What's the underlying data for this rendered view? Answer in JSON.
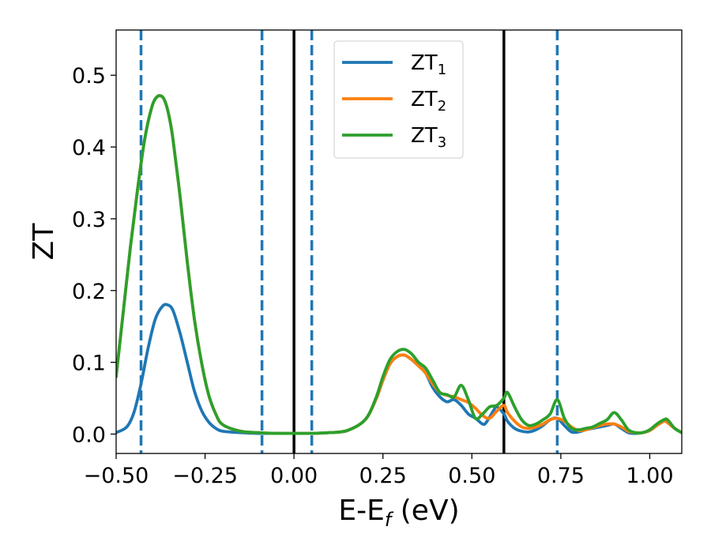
{
  "chart_data": {
    "type": "line",
    "xlabel": {
      "main": "E-E",
      "sub": "f",
      "tail": " (eV)"
    },
    "ylabel": "ZT",
    "xlim": [
      -0.5,
      1.09
    ],
    "ylim": [
      -0.027,
      0.563
    ],
    "xticks": [
      -0.5,
      -0.25,
      0.0,
      0.25,
      0.5,
      0.75,
      1.0
    ],
    "xtick_labels": [
      "−0.50",
      "−0.25",
      "0.00",
      "0.25",
      "0.50",
      "0.75",
      "1.00"
    ],
    "yticks": [
      0.0,
      0.1,
      0.2,
      0.3,
      0.4,
      0.5
    ],
    "ytick_labels": [
      "0.0",
      "0.1",
      "0.2",
      "0.3",
      "0.4",
      "0.5"
    ],
    "grid": false,
    "legend_position": "top-center",
    "series": [
      {
        "name": "ZT1",
        "legend_main": "ZT",
        "legend_sub": "1",
        "color": "#1f77b4",
        "x": [
          -0.5,
          -0.47,
          -0.45,
          -0.43,
          -0.41,
          -0.39,
          -0.37,
          -0.355,
          -0.34,
          -0.32,
          -0.3,
          -0.28,
          -0.26,
          -0.24,
          -0.22,
          -0.2,
          -0.15,
          -0.1,
          -0.05,
          0.0,
          0.05,
          0.1,
          0.15,
          0.2,
          0.23,
          0.25,
          0.27,
          0.29,
          0.31,
          0.33,
          0.35,
          0.37,
          0.39,
          0.41,
          0.43,
          0.45,
          0.47,
          0.49,
          0.51,
          0.53,
          0.54,
          0.56,
          0.57,
          0.59,
          0.6,
          0.62,
          0.64,
          0.66,
          0.68,
          0.7,
          0.72,
          0.74,
          0.76,
          0.78,
          0.8,
          0.82,
          0.84,
          0.86,
          0.88,
          0.9,
          0.92,
          0.94,
          0.96,
          0.98,
          1.0,
          1.02,
          1.04,
          1.05,
          1.07,
          1.09
        ],
        "y": [
          0.002,
          0.01,
          0.03,
          0.07,
          0.12,
          0.16,
          0.178,
          0.18,
          0.172,
          0.14,
          0.1,
          0.06,
          0.033,
          0.017,
          0.008,
          0.004,
          0.002,
          0.001,
          0.001,
          0.001,
          0.001,
          0.002,
          0.005,
          0.02,
          0.048,
          0.075,
          0.098,
          0.108,
          0.11,
          0.104,
          0.095,
          0.085,
          0.065,
          0.052,
          0.045,
          0.048,
          0.04,
          0.028,
          0.022,
          0.014,
          0.016,
          0.032,
          0.038,
          0.028,
          0.018,
          0.008,
          0.004,
          0.003,
          0.006,
          0.012,
          0.02,
          0.022,
          0.012,
          0.003,
          0.003,
          0.006,
          0.008,
          0.01,
          0.012,
          0.014,
          0.008,
          0.002,
          0.001,
          0.002,
          0.005,
          0.012,
          0.018,
          0.016,
          0.008,
          0.002
        ]
      },
      {
        "name": "ZT2",
        "legend_main": "ZT",
        "legend_sub": "2",
        "color": "#ff7f0e",
        "x": [
          -0.5,
          -0.48,
          -0.46,
          -0.44,
          -0.42,
          -0.4,
          -0.385,
          -0.37,
          -0.36,
          -0.35,
          -0.34,
          -0.32,
          -0.3,
          -0.28,
          -0.26,
          -0.24,
          -0.22,
          -0.2,
          -0.15,
          -0.1,
          -0.05,
          0.0,
          0.05,
          0.1,
          0.15,
          0.2,
          0.23,
          0.25,
          0.27,
          0.29,
          0.31,
          0.33,
          0.35,
          0.37,
          0.39,
          0.41,
          0.43,
          0.45,
          0.47,
          0.49,
          0.51,
          0.53,
          0.55,
          0.57,
          0.59,
          0.6,
          0.62,
          0.64,
          0.66,
          0.68,
          0.7,
          0.72,
          0.74,
          0.76,
          0.78,
          0.8,
          0.82,
          0.84,
          0.86,
          0.88,
          0.9,
          0.92,
          0.94,
          0.96,
          0.98,
          1.0,
          1.02,
          1.04,
          1.05,
          1.07,
          1.09
        ],
        "y": [
          0.08,
          0.17,
          0.26,
          0.34,
          0.41,
          0.455,
          0.47,
          0.47,
          0.46,
          0.44,
          0.41,
          0.33,
          0.24,
          0.16,
          0.1,
          0.055,
          0.028,
          0.013,
          0.004,
          0.002,
          0.001,
          0.001,
          0.001,
          0.002,
          0.005,
          0.02,
          0.048,
          0.075,
          0.098,
          0.108,
          0.11,
          0.104,
          0.095,
          0.085,
          0.07,
          0.058,
          0.054,
          0.052,
          0.048,
          0.044,
          0.036,
          0.026,
          0.022,
          0.032,
          0.04,
          0.03,
          0.018,
          0.01,
          0.008,
          0.01,
          0.014,
          0.02,
          0.022,
          0.018,
          0.01,
          0.005,
          0.006,
          0.009,
          0.012,
          0.014,
          0.014,
          0.01,
          0.004,
          0.002,
          0.002,
          0.005,
          0.012,
          0.018,
          0.016,
          0.008,
          0.002
        ]
      },
      {
        "name": "ZT3",
        "legend_main": "ZT",
        "legend_sub": "3",
        "color": "#2ca02c",
        "x": [
          -0.5,
          -0.48,
          -0.46,
          -0.44,
          -0.42,
          -0.4,
          -0.385,
          -0.37,
          -0.36,
          -0.35,
          -0.34,
          -0.32,
          -0.3,
          -0.28,
          -0.26,
          -0.24,
          -0.22,
          -0.2,
          -0.15,
          -0.1,
          -0.05,
          0.0,
          0.05,
          0.1,
          0.15,
          0.2,
          0.23,
          0.25,
          0.27,
          0.29,
          0.31,
          0.33,
          0.35,
          0.37,
          0.39,
          0.41,
          0.43,
          0.45,
          0.47,
          0.49,
          0.51,
          0.53,
          0.55,
          0.57,
          0.59,
          0.6,
          0.62,
          0.64,
          0.66,
          0.68,
          0.7,
          0.72,
          0.74,
          0.76,
          0.78,
          0.8,
          0.82,
          0.84,
          0.86,
          0.88,
          0.9,
          0.92,
          0.94,
          0.96,
          0.98,
          1.0,
          1.02,
          1.04,
          1.05,
          1.07,
          1.09
        ],
        "y": [
          0.08,
          0.17,
          0.26,
          0.34,
          0.41,
          0.455,
          0.47,
          0.47,
          0.46,
          0.44,
          0.41,
          0.33,
          0.24,
          0.16,
          0.1,
          0.055,
          0.028,
          0.013,
          0.004,
          0.002,
          0.001,
          0.001,
          0.001,
          0.002,
          0.005,
          0.02,
          0.05,
          0.08,
          0.104,
          0.115,
          0.118,
          0.112,
          0.1,
          0.092,
          0.075,
          0.058,
          0.055,
          0.052,
          0.068,
          0.048,
          0.022,
          0.028,
          0.038,
          0.04,
          0.05,
          0.058,
          0.038,
          0.02,
          0.012,
          0.014,
          0.02,
          0.028,
          0.048,
          0.022,
          0.008,
          0.006,
          0.008,
          0.01,
          0.015,
          0.02,
          0.03,
          0.02,
          0.006,
          0.002,
          0.002,
          0.006,
          0.014,
          0.02,
          0.02,
          0.008,
          0.002
        ]
      }
    ],
    "vlines": [
      {
        "x": -0.43,
        "style": "dashed",
        "color": "#1f77b4"
      },
      {
        "x": -0.09,
        "style": "dashed",
        "color": "#1f77b4"
      },
      {
        "x": 0.05,
        "style": "dashed",
        "color": "#1f77b4"
      },
      {
        "x": 0.74,
        "style": "dashed",
        "color": "#1f77b4"
      },
      {
        "x": 0.0,
        "style": "solid",
        "color": "#000000"
      },
      {
        "x": 0.59,
        "style": "solid",
        "color": "#000000"
      }
    ]
  }
}
